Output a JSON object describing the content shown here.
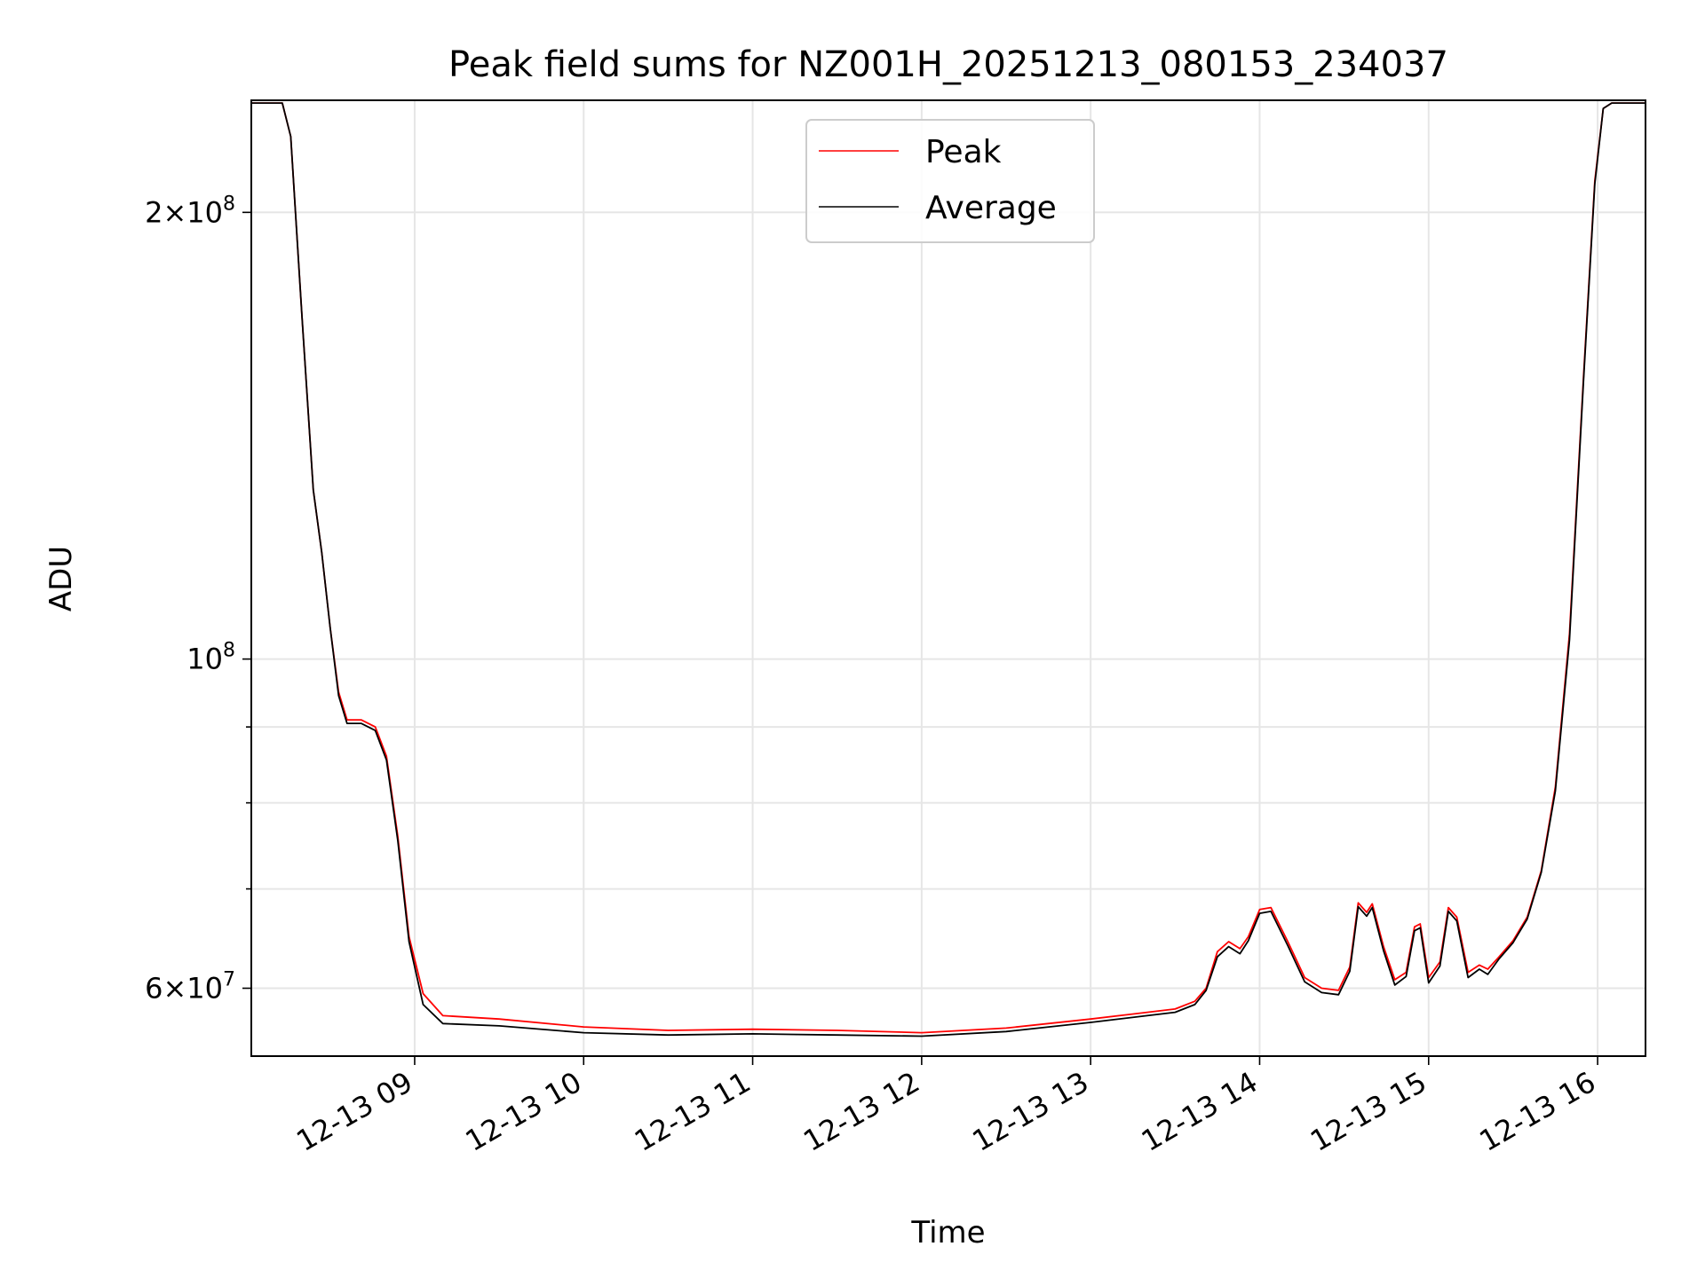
{
  "chart_data": {
    "type": "line",
    "title": "Peak field sums for NZ001H_20251213_080153_234037",
    "xlabel": "Time",
    "ylabel": "ADU",
    "yscale": "log",
    "grid": true,
    "legend_position": "upper center",
    "xlim": [
      "2025-12-13 08:02",
      "2025-12-13 16:17"
    ],
    "ylim": [
      54000000,
      238000000
    ],
    "x_ticks": [
      {
        "value": "2025-12-13 09:00",
        "label": "12-13 09"
      },
      {
        "value": "2025-12-13 10:00",
        "label": "12-13 10"
      },
      {
        "value": "2025-12-13 11:00",
        "label": "12-13 11"
      },
      {
        "value": "2025-12-13 12:00",
        "label": "12-13 12"
      },
      {
        "value": "2025-12-13 13:00",
        "label": "12-13 13"
      },
      {
        "value": "2025-12-13 14:00",
        "label": "12-13 14"
      },
      {
        "value": "2025-12-13 15:00",
        "label": "12-13 15"
      },
      {
        "value": "2025-12-13 16:00",
        "label": "12-13 16"
      }
    ],
    "y_major_ticks": [
      {
        "value": 60000000,
        "mantissa": "6",
        "exponent": "7"
      },
      {
        "value": 100000000,
        "mantissa": "",
        "exponent": "8"
      },
      {
        "value": 200000000,
        "mantissa": "2",
        "exponent": "8"
      }
    ],
    "y_minor_grid": [
      70000000,
      80000000,
      90000000
    ],
    "series": [
      {
        "name": "Peak",
        "color": "#ff0000",
        "points": [
          [
            "2025-12-13 08:02",
            237000000
          ],
          [
            "2025-12-13 08:13",
            237000000
          ],
          [
            "2025-12-13 08:16",
            225000000
          ],
          [
            "2025-12-13 08:20",
            170000000
          ],
          [
            "2025-12-13 08:24",
            130000000
          ],
          [
            "2025-12-13 08:27",
            118000000
          ],
          [
            "2025-12-13 08:30",
            105000000
          ],
          [
            "2025-12-13 08:33",
            95000000
          ],
          [
            "2025-12-13 08:36",
            91000000
          ],
          [
            "2025-12-13 08:41",
            91000000
          ],
          [
            "2025-12-13 08:46",
            90000000
          ],
          [
            "2025-12-13 08:50",
            86000000
          ],
          [
            "2025-12-13 08:54",
            76000000
          ],
          [
            "2025-12-13 08:58",
            65000000
          ],
          [
            "2025-12-13 09:03",
            59500000
          ],
          [
            "2025-12-13 09:10",
            57500000
          ],
          [
            "2025-12-13 09:30",
            57200000
          ],
          [
            "2025-12-13 10:00",
            56500000
          ],
          [
            "2025-12-13 10:30",
            56200000
          ],
          [
            "2025-12-13 11:00",
            56300000
          ],
          [
            "2025-12-13 11:30",
            56200000
          ],
          [
            "2025-12-13 12:00",
            56000000
          ],
          [
            "2025-12-13 12:30",
            56400000
          ],
          [
            "2025-12-13 13:00",
            57200000
          ],
          [
            "2025-12-13 13:30",
            58100000
          ],
          [
            "2025-12-13 13:37",
            58800000
          ],
          [
            "2025-12-13 13:41",
            60000000
          ],
          [
            "2025-12-13 13:45",
            63500000
          ],
          [
            "2025-12-13 13:49",
            64500000
          ],
          [
            "2025-12-13 13:53",
            63800000
          ],
          [
            "2025-12-13 13:56",
            65000000
          ],
          [
            "2025-12-13 14:00",
            67800000
          ],
          [
            "2025-12-13 14:04",
            68000000
          ],
          [
            "2025-12-13 14:10",
            64500000
          ],
          [
            "2025-12-13 14:16",
            61000000
          ],
          [
            "2025-12-13 14:22",
            60000000
          ],
          [
            "2025-12-13 14:28",
            59800000
          ],
          [
            "2025-12-13 14:32",
            62000000
          ],
          [
            "2025-12-13 14:35",
            68500000
          ],
          [
            "2025-12-13 14:38",
            67500000
          ],
          [
            "2025-12-13 14:40",
            68400000
          ],
          [
            "2025-12-13 14:44",
            64000000
          ],
          [
            "2025-12-13 14:48",
            60800000
          ],
          [
            "2025-12-13 14:52",
            61500000
          ],
          [
            "2025-12-13 14:55",
            66000000
          ],
          [
            "2025-12-13 14:57",
            66300000
          ],
          [
            "2025-12-13 15:00",
            61000000
          ],
          [
            "2025-12-13 15:04",
            62500000
          ],
          [
            "2025-12-13 15:07",
            68000000
          ],
          [
            "2025-12-13 15:10",
            67000000
          ],
          [
            "2025-12-13 15:14",
            61500000
          ],
          [
            "2025-12-13 15:18",
            62200000
          ],
          [
            "2025-12-13 15:21",
            61800000
          ],
          [
            "2025-12-13 15:25",
            63000000
          ],
          [
            "2025-12-13 15:30",
            64600000
          ],
          [
            "2025-12-13 15:35",
            67000000
          ],
          [
            "2025-12-13 15:40",
            72000000
          ],
          [
            "2025-12-13 15:45",
            82000000
          ],
          [
            "2025-12-13 15:50",
            104000000
          ],
          [
            "2025-12-13 15:55",
            155000000
          ],
          [
            "2025-12-13 15:59",
            210000000
          ],
          [
            "2025-12-13 16:02",
            235000000
          ],
          [
            "2025-12-13 16:05",
            237000000
          ],
          [
            "2025-12-13 16:17",
            237000000
          ]
        ]
      },
      {
        "name": "Average",
        "color": "#000000",
        "points": [
          [
            "2025-12-13 08:02",
            237000000
          ],
          [
            "2025-12-13 08:13",
            237000000
          ],
          [
            "2025-12-13 08:16",
            225000000
          ],
          [
            "2025-12-13 08:20",
            170000000
          ],
          [
            "2025-12-13 08:24",
            130000000
          ],
          [
            "2025-12-13 08:27",
            118000000
          ],
          [
            "2025-12-13 08:30",
            105000000
          ],
          [
            "2025-12-13 08:33",
            94500000
          ],
          [
            "2025-12-13 08:36",
            90500000
          ],
          [
            "2025-12-13 08:41",
            90500000
          ],
          [
            "2025-12-13 08:46",
            89500000
          ],
          [
            "2025-12-13 08:50",
            85500000
          ],
          [
            "2025-12-13 08:54",
            75500000
          ],
          [
            "2025-12-13 08:58",
            64500000
          ],
          [
            "2025-12-13 09:03",
            58500000
          ],
          [
            "2025-12-13 09:10",
            56800000
          ],
          [
            "2025-12-13 09:30",
            56600000
          ],
          [
            "2025-12-13 10:00",
            56000000
          ],
          [
            "2025-12-13 10:30",
            55800000
          ],
          [
            "2025-12-13 11:00",
            55900000
          ],
          [
            "2025-12-13 11:30",
            55800000
          ],
          [
            "2025-12-13 12:00",
            55700000
          ],
          [
            "2025-12-13 12:30",
            56100000
          ],
          [
            "2025-12-13 13:00",
            56900000
          ],
          [
            "2025-12-13 13:30",
            57800000
          ],
          [
            "2025-12-13 13:37",
            58500000
          ],
          [
            "2025-12-13 13:41",
            59800000
          ],
          [
            "2025-12-13 13:45",
            63000000
          ],
          [
            "2025-12-13 13:49",
            64000000
          ],
          [
            "2025-12-13 13:53",
            63300000
          ],
          [
            "2025-12-13 13:56",
            64600000
          ],
          [
            "2025-12-13 14:00",
            67400000
          ],
          [
            "2025-12-13 14:04",
            67600000
          ],
          [
            "2025-12-13 14:10",
            64100000
          ],
          [
            "2025-12-13 14:16",
            60600000
          ],
          [
            "2025-12-13 14:22",
            59600000
          ],
          [
            "2025-12-13 14:28",
            59400000
          ],
          [
            "2025-12-13 14:32",
            61600000
          ],
          [
            "2025-12-13 14:35",
            68100000
          ],
          [
            "2025-12-13 14:38",
            67100000
          ],
          [
            "2025-12-13 14:40",
            68000000
          ],
          [
            "2025-12-13 14:44",
            63600000
          ],
          [
            "2025-12-13 14:48",
            60300000
          ],
          [
            "2025-12-13 14:52",
            61100000
          ],
          [
            "2025-12-13 14:55",
            65600000
          ],
          [
            "2025-12-13 14:57",
            65900000
          ],
          [
            "2025-12-13 15:00",
            60500000
          ],
          [
            "2025-12-13 15:04",
            62100000
          ],
          [
            "2025-12-13 15:07",
            67600000
          ],
          [
            "2025-12-13 15:10",
            66600000
          ],
          [
            "2025-12-13 15:14",
            61000000
          ],
          [
            "2025-12-13 15:18",
            61800000
          ],
          [
            "2025-12-13 15:21",
            61300000
          ],
          [
            "2025-12-13 15:25",
            62800000
          ],
          [
            "2025-12-13 15:30",
            64400000
          ],
          [
            "2025-12-13 15:35",
            66800000
          ],
          [
            "2025-12-13 15:40",
            71800000
          ],
          [
            "2025-12-13 15:45",
            81500000
          ],
          [
            "2025-12-13 15:50",
            103000000
          ],
          [
            "2025-12-13 15:55",
            154000000
          ],
          [
            "2025-12-13 15:59",
            209000000
          ],
          [
            "2025-12-13 16:02",
            235000000
          ],
          [
            "2025-12-13 16:05",
            237000000
          ],
          [
            "2025-12-13 16:17",
            237000000
          ]
        ]
      }
    ]
  }
}
